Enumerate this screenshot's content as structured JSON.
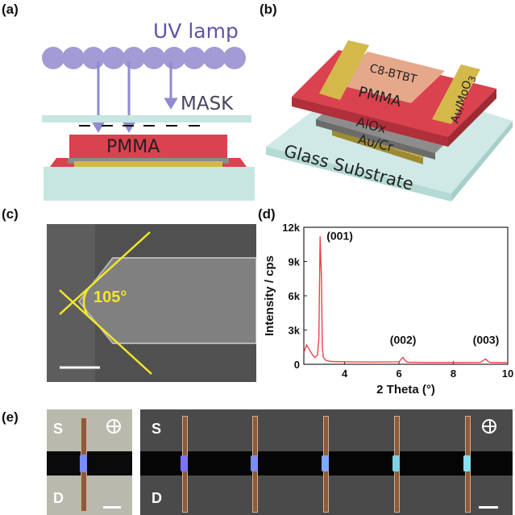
{
  "panels": {
    "a": {
      "label": "(a)",
      "uv_lamp": "UV lamp",
      "mask": "MASK",
      "pmma": "PMMA"
    },
    "b": {
      "label": "(b)",
      "layers": [
        "C8-BTBT",
        "PMMA",
        "Au/MoO",
        "AlOx",
        "Au/Cr"
      ],
      "au_moo_subscript": "3",
      "substrate": "Glass Substrate"
    },
    "c": {
      "label": "(c)",
      "angle": "105°"
    },
    "d": {
      "label": "(d)",
      "peaks": [
        "(001)",
        "(002)",
        "(003)"
      ]
    },
    "e": {
      "label": "(e)",
      "source": "S",
      "drain": "D"
    }
  },
  "chart_data": {
    "type": "line",
    "xlabel": "2 Theta (°)",
    "ylabel": "Intensity / cps",
    "xlim": [
      2.5,
      10
    ],
    "ylim": [
      0,
      12000
    ],
    "x_ticks": [
      4,
      6,
      8,
      10
    ],
    "y_ticks": [
      0,
      3000,
      6000,
      9000,
      12000
    ],
    "y_tick_labels": [
      "0",
      "3k",
      "6k",
      "9k",
      "12k"
    ],
    "color": "#e8444a",
    "series": [
      {
        "x": [
          2.5,
          2.6,
          2.8,
          2.9,
          3.0,
          3.05,
          3.1,
          3.12,
          3.15,
          3.18,
          3.22,
          3.3,
          3.5,
          4.0,
          5.0,
          6.0,
          6.1,
          6.15,
          6.2,
          6.3,
          7.0,
          8.0,
          9.0,
          9.15,
          9.2,
          9.25,
          9.35,
          10.0
        ],
        "y": [
          1000,
          1700,
          900,
          600,
          800,
          2200,
          11200,
          9500,
          7500,
          1500,
          600,
          350,
          250,
          220,
          200,
          220,
          500,
          600,
          400,
          180,
          160,
          160,
          170,
          420,
          450,
          300,
          170,
          150
        ]
      }
    ],
    "peak_labels": [
      {
        "x": 3.1,
        "text": "(001)"
      },
      {
        "x": 6.15,
        "text": "(002)"
      },
      {
        "x": 9.2,
        "text": "(003)"
      }
    ]
  }
}
